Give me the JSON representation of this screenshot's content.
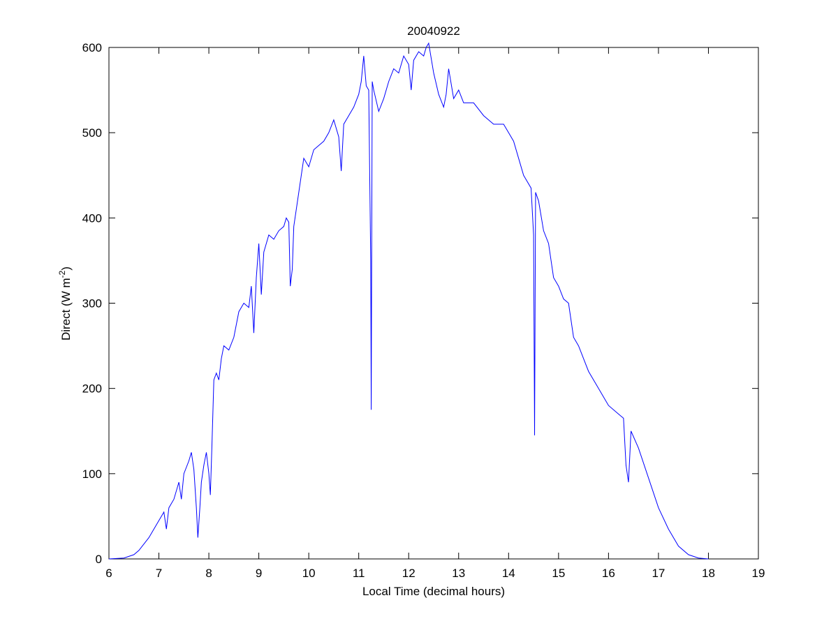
{
  "chart_data": {
    "type": "line",
    "title": "20040922",
    "x_label": "Local Time (decimal hours)",
    "y_label": [
      "Direct (W m",
      "-2",
      ")"
    ],
    "xlim": [
      6,
      19
    ],
    "ylim": [
      0,
      600
    ],
    "xticks": [
      6,
      7,
      8,
      9,
      10,
      11,
      12,
      13,
      14,
      15,
      16,
      17,
      18,
      19
    ],
    "yticks": [
      0,
      100,
      200,
      300,
      400,
      500,
      600
    ],
    "grid": false,
    "x": [
      6.0,
      6.3,
      6.5,
      6.6,
      6.8,
      7.0,
      7.1,
      7.15,
      7.2,
      7.3,
      7.4,
      7.45,
      7.5,
      7.6,
      7.65,
      7.7,
      7.75,
      7.78,
      7.82,
      7.85,
      7.9,
      7.95,
      8.0,
      8.03,
      8.06,
      8.1,
      8.15,
      8.2,
      8.25,
      8.3,
      8.4,
      8.5,
      8.6,
      8.7,
      8.8,
      8.85,
      8.9,
      8.95,
      9.0,
      9.05,
      9.1,
      9.2,
      9.3,
      9.4,
      9.5,
      9.55,
      9.6,
      9.63,
      9.67,
      9.7,
      9.8,
      9.9,
      10.0,
      10.1,
      10.2,
      10.3,
      10.4,
      10.5,
      10.6,
      10.65,
      10.7,
      10.8,
      10.9,
      11.0,
      11.05,
      11.1,
      11.15,
      11.2,
      11.24,
      11.25,
      11.27,
      11.3,
      11.4,
      11.5,
      11.6,
      11.7,
      11.8,
      11.9,
      12.0,
      12.05,
      12.1,
      12.2,
      12.3,
      12.35,
      12.4,
      12.5,
      12.6,
      12.7,
      12.75,
      12.8,
      12.9,
      13.0,
      13.1,
      13.3,
      13.5,
      13.7,
      13.9,
      14.0,
      14.1,
      14.2,
      14.3,
      14.45,
      14.5,
      14.52,
      14.54,
      14.6,
      14.7,
      14.8,
      14.9,
      15.0,
      15.1,
      15.2,
      15.3,
      15.4,
      15.5,
      15.6,
      15.8,
      15.9,
      16.0,
      16.2,
      16.3,
      16.35,
      16.4,
      16.45,
      16.6,
      16.8,
      17.0,
      17.2,
      17.4,
      17.6,
      17.8,
      18.0
    ],
    "series": [
      {
        "color": "#0000ff",
        "values": [
          0,
          1,
          5,
          10,
          25,
          45,
          55,
          35,
          60,
          70,
          90,
          70,
          100,
          115,
          125,
          105,
          60,
          25,
          60,
          90,
          110,
          125,
          100,
          75,
          130,
          210,
          218,
          210,
          235,
          250,
          245,
          260,
          290,
          300,
          295,
          320,
          265,
          330,
          370,
          310,
          360,
          380,
          375,
          385,
          390,
          400,
          395,
          320,
          340,
          390,
          430,
          470,
          460,
          480,
          485,
          490,
          500,
          515,
          495,
          455,
          510,
          520,
          530,
          545,
          560,
          590,
          555,
          550,
          350,
          175,
          560,
          550,
          525,
          540,
          560,
          575,
          570,
          590,
          580,
          550,
          585,
          595,
          590,
          600,
          605,
          570,
          545,
          530,
          545,
          575,
          540,
          550,
          535,
          535,
          520,
          510,
          510,
          500,
          490,
          470,
          450,
          435,
          380,
          145,
          430,
          420,
          385,
          370,
          330,
          320,
          305,
          300,
          260,
          250,
          235,
          220,
          200,
          190,
          180,
          170,
          165,
          110,
          90,
          150,
          130,
          95,
          60,
          35,
          15,
          5,
          1,
          0
        ]
      }
    ]
  }
}
